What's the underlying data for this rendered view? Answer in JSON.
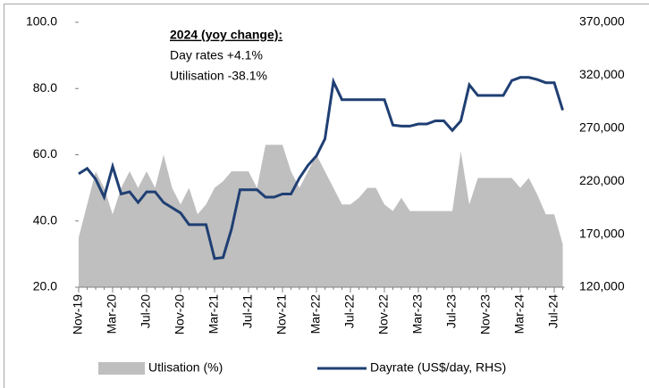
{
  "chart_data": {
    "type": "bar-line",
    "annotations": {
      "heading": "2024 (yoy change):",
      "lines": [
        "Day rates +4.1%",
        "Utilisation -38.1%"
      ]
    },
    "categories": [
      "Nov-19",
      null,
      null,
      null,
      "Mar-20",
      null,
      null,
      null,
      "Jul-20",
      null,
      null,
      null,
      "Nov-20",
      null,
      null,
      null,
      "Mar-21",
      null,
      null,
      null,
      "Jul-21",
      null,
      null,
      null,
      "Nov-21",
      null,
      null,
      null,
      "Mar-22",
      null,
      null,
      null,
      "Jul-22",
      null,
      null,
      null,
      "Nov-22",
      null,
      null,
      null,
      "Mar-23",
      null,
      null,
      null,
      "Jul-23",
      null,
      null,
      null,
      "Nov-23",
      null,
      null,
      null,
      "Mar-24",
      null,
      null,
      null,
      "Jul-24",
      null
    ],
    "series": [
      {
        "name": "Utlisation (%)",
        "type": "area",
        "color": "#bfbfbf",
        "axis": "y",
        "values": [
          35,
          45,
          55,
          50,
          42,
          50,
          55,
          50,
          55,
          50,
          60,
          50,
          45,
          50,
          42,
          45,
          50,
          52,
          55,
          55,
          55,
          50,
          63,
          63,
          63,
          55,
          50,
          55,
          60,
          55,
          50,
          45,
          45,
          47,
          50,
          50,
          45,
          43,
          47,
          43,
          43,
          43,
          43,
          43,
          43,
          61,
          45,
          53,
          53,
          53,
          53,
          53,
          50,
          53,
          48,
          42,
          42,
          33
        ]
      },
      {
        "name": "Dayrate (US$/day, RHS)",
        "type": "line",
        "color": "#1f3f73",
        "axis": "y2",
        "values": [
          227000,
          232000,
          222000,
          205000,
          234000,
          208000,
          210000,
          200000,
          210000,
          210000,
          200000,
          195000,
          190000,
          179000,
          179000,
          179000,
          147000,
          148000,
          175000,
          212000,
          212000,
          212000,
          205000,
          205000,
          208000,
          208000,
          223000,
          235000,
          244000,
          260000,
          314000,
          297000,
          297000,
          297000,
          297000,
          297000,
          297000,
          273000,
          272000,
          272000,
          274000,
          274000,
          277000,
          277000,
          268000,
          277000,
          311000,
          301000,
          301000,
          301000,
          301000,
          315000,
          318000,
          318000,
          316000,
          313000,
          313000,
          287000
        ]
      }
    ],
    "ylim": [
      20,
      100
    ],
    "yticks": [
      {
        "value": 20,
        "label": "20.0"
      },
      {
        "value": 40,
        "label": "40.0"
      },
      {
        "value": 60,
        "label": "60.0"
      },
      {
        "value": 80,
        "label": "80.0"
      },
      {
        "value": 100,
        "label": "100.0"
      }
    ],
    "y2lim": [
      120000,
      370000
    ],
    "y2ticks": [
      {
        "value": 120000,
        "label": "120,000"
      },
      {
        "value": 170000,
        "label": "170,000"
      },
      {
        "value": 220000,
        "label": "220,000"
      },
      {
        "value": 270000,
        "label": "270,000"
      },
      {
        "value": 320000,
        "label": "320,000"
      },
      {
        "value": 370000,
        "label": "370,000"
      }
    ],
    "legend": "bottom"
  }
}
